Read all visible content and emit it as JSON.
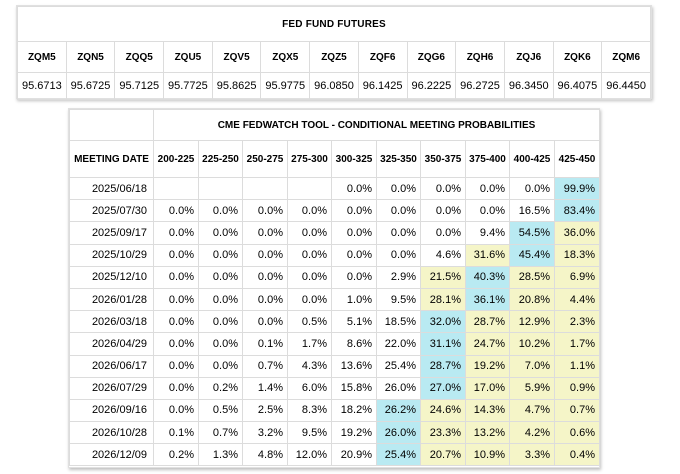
{
  "futures": {
    "title": "FED FUND FUTURES",
    "codes": [
      "ZQM5",
      "ZQN5",
      "ZQQ5",
      "ZQU5",
      "ZQV5",
      "ZQX5",
      "ZQZ5",
      "ZQF6",
      "ZQG6",
      "ZQH6",
      "ZQJ6",
      "ZQK6",
      "ZQM6"
    ],
    "values": [
      "95.6713",
      "95.6725",
      "95.7125",
      "95.7725",
      "95.8625",
      "95.9775",
      "96.0850",
      "96.1425",
      "96.2225",
      "96.2725",
      "96.3450",
      "96.4075",
      "96.4450"
    ]
  },
  "fedwatch": {
    "title": "CME FEDWATCH TOOL - CONDITIONAL MEETING PROBABILITIES",
    "date_header": "MEETING DATE",
    "ranges": [
      "200-225",
      "225-250",
      "250-275",
      "275-300",
      "300-325",
      "325-350",
      "350-375",
      "375-400",
      "400-425",
      "425-450"
    ],
    "highlight_colors": {
      "max": "#b9eaf2",
      "near": "#f5f5c8"
    },
    "rows": [
      {
        "date": "2025/06/18",
        "values": [
          "",
          "",
          "",
          "",
          "0.0%",
          "0.0%",
          "0.0%",
          "0.0%",
          "0.0%",
          "99.9%"
        ],
        "hl": [
          "",
          "",
          "",
          "",
          "",
          "",
          "",
          "",
          "",
          "max"
        ]
      },
      {
        "date": "2025/07/30",
        "values": [
          "0.0%",
          "0.0%",
          "0.0%",
          "0.0%",
          "0.0%",
          "0.0%",
          "0.0%",
          "0.0%",
          "16.5%",
          "83.4%"
        ],
        "hl": [
          "",
          "",
          "",
          "",
          "",
          "",
          "",
          "",
          "",
          "max"
        ]
      },
      {
        "date": "2025/09/17",
        "values": [
          "0.0%",
          "0.0%",
          "0.0%",
          "0.0%",
          "0.0%",
          "0.0%",
          "0.0%",
          "9.4%",
          "54.5%",
          "36.0%"
        ],
        "hl": [
          "",
          "",
          "",
          "",
          "",
          "",
          "",
          "",
          "max",
          "near"
        ]
      },
      {
        "date": "2025/10/29",
        "values": [
          "0.0%",
          "0.0%",
          "0.0%",
          "0.0%",
          "0.0%",
          "0.0%",
          "4.6%",
          "31.6%",
          "45.4%",
          "18.3%"
        ],
        "hl": [
          "",
          "",
          "",
          "",
          "",
          "",
          "",
          "near",
          "max",
          "near"
        ]
      },
      {
        "date": "2025/12/10",
        "values": [
          "0.0%",
          "0.0%",
          "0.0%",
          "0.0%",
          "0.0%",
          "2.9%",
          "21.5%",
          "40.3%",
          "28.5%",
          "6.9%"
        ],
        "hl": [
          "",
          "",
          "",
          "",
          "",
          "",
          "near",
          "max",
          "near",
          "near"
        ]
      },
      {
        "date": "2026/01/28",
        "values": [
          "0.0%",
          "0.0%",
          "0.0%",
          "0.0%",
          "1.0%",
          "9.5%",
          "28.1%",
          "36.1%",
          "20.8%",
          "4.4%"
        ],
        "hl": [
          "",
          "",
          "",
          "",
          "",
          "",
          "near",
          "max",
          "near",
          "near"
        ]
      },
      {
        "date": "2026/03/18",
        "values": [
          "0.0%",
          "0.0%",
          "0.0%",
          "0.5%",
          "5.1%",
          "18.5%",
          "32.0%",
          "28.7%",
          "12.9%",
          "2.3%"
        ],
        "hl": [
          "",
          "",
          "",
          "",
          "",
          "",
          "max",
          "near",
          "near",
          "near"
        ]
      },
      {
        "date": "2026/04/29",
        "values": [
          "0.0%",
          "0.0%",
          "0.1%",
          "1.7%",
          "8.6%",
          "22.0%",
          "31.1%",
          "24.7%",
          "10.2%",
          "1.7%"
        ],
        "hl": [
          "",
          "",
          "",
          "",
          "",
          "",
          "max",
          "near",
          "near",
          "near"
        ]
      },
      {
        "date": "2026/06/17",
        "values": [
          "0.0%",
          "0.0%",
          "0.7%",
          "4.3%",
          "13.6%",
          "25.4%",
          "28.7%",
          "19.2%",
          "7.0%",
          "1.1%"
        ],
        "hl": [
          "",
          "",
          "",
          "",
          "",
          "",
          "max",
          "near",
          "near",
          "near"
        ]
      },
      {
        "date": "2026/07/29",
        "values": [
          "0.0%",
          "0.2%",
          "1.4%",
          "6.0%",
          "15.8%",
          "26.0%",
          "27.0%",
          "17.0%",
          "5.9%",
          "0.9%"
        ],
        "hl": [
          "",
          "",
          "",
          "",
          "",
          "",
          "max",
          "near",
          "near",
          "near"
        ]
      },
      {
        "date": "2026/09/16",
        "values": [
          "0.0%",
          "0.5%",
          "2.5%",
          "8.3%",
          "18.2%",
          "26.2%",
          "24.6%",
          "14.3%",
          "4.7%",
          "0.7%"
        ],
        "hl": [
          "",
          "",
          "",
          "",
          "",
          "max",
          "near",
          "near",
          "near",
          "near"
        ]
      },
      {
        "date": "2026/10/28",
        "values": [
          "0.1%",
          "0.7%",
          "3.2%",
          "9.5%",
          "19.2%",
          "26.0%",
          "23.3%",
          "13.2%",
          "4.2%",
          "0.6%"
        ],
        "hl": [
          "",
          "",
          "",
          "",
          "",
          "max",
          "near",
          "near",
          "near",
          "near"
        ]
      },
      {
        "date": "2026/12/09",
        "values": [
          "0.2%",
          "1.3%",
          "4.8%",
          "12.0%",
          "20.9%",
          "25.4%",
          "20.7%",
          "10.9%",
          "3.3%",
          "0.4%"
        ],
        "hl": [
          "",
          "",
          "",
          "",
          "",
          "max",
          "near",
          "near",
          "near",
          "near"
        ]
      }
    ]
  }
}
